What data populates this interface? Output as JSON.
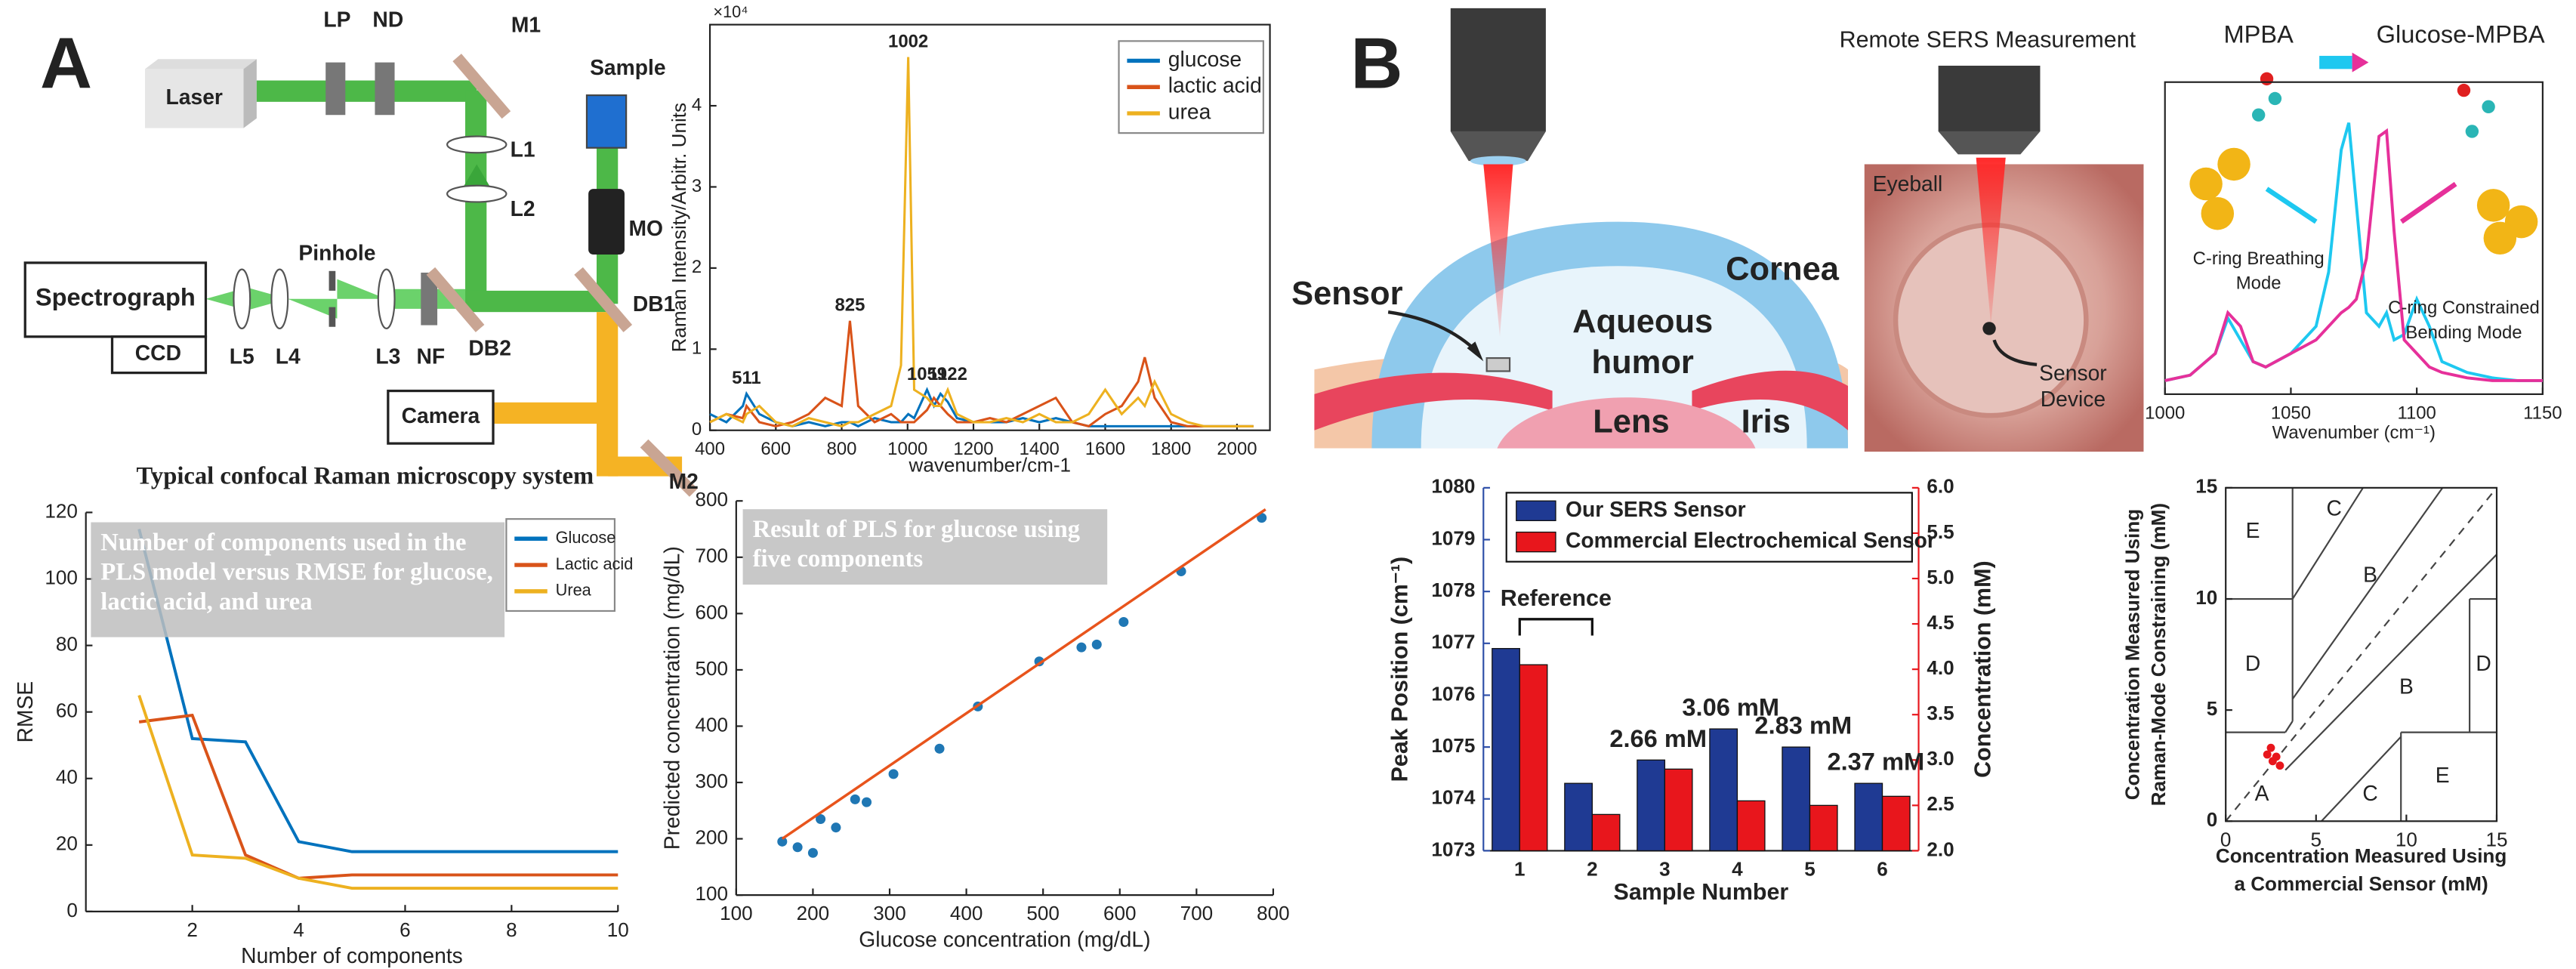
{
  "panel_labels": [
    "A",
    "B"
  ],
  "setup_diagram": {
    "labels": [
      "Laser",
      "LP",
      "ND",
      "M1",
      "Sample",
      "L1",
      "L2",
      "MO",
      "Pinhole",
      "Spectrograph",
      "CCD",
      "L5",
      "L4",
      "L3",
      "NF",
      "DB2",
      "DB1",
      "Camera",
      "M2"
    ],
    "caption": "Typical confocal Raman microscopy system"
  },
  "eye_diagram": {
    "labels": [
      "Sensor",
      "Cornea",
      "Lens",
      "Iris"
    ],
    "aqueous_humor": [
      "Aqueous",
      "humor"
    ]
  },
  "photo": {
    "title": "Remote SERS Measurement",
    "label": "Eyeball",
    "sensor_device": [
      "Sensor",
      "Device"
    ]
  },
  "chart_data": [
    {
      "type": "line",
      "multiplier": "×10⁴",
      "xlabel": "wavenumber/cm-1",
      "ylabel": "Raman Intensity/Arbitr. Units",
      "x": [
        400,
        450,
        500,
        511,
        550,
        600,
        650,
        700,
        750,
        800,
        825,
        850,
        900,
        950,
        980,
        1002,
        1020,
        1059,
        1080,
        1100,
        1122,
        1150,
        1200,
        1250,
        1300,
        1350,
        1400,
        1450,
        1500,
        1550,
        1600,
        1650,
        1700,
        1720,
        1750,
        1800,
        1850,
        1900,
        1950,
        2000,
        2050
      ],
      "series": [
        {
          "name": "glucose",
          "color": "#0072bd",
          "values": [
            0.2,
            0.1,
            0.3,
            0.45,
            0.2,
            0.1,
            0.05,
            0.1,
            0.05,
            0.1,
            0.1,
            0.05,
            0.15,
            0.1,
            0.1,
            0.2,
            0.15,
            0.5,
            0.3,
            0.45,
            0.35,
            0.15,
            0.1,
            0.1,
            0.1,
            0.15,
            0.1,
            0.15,
            0.1,
            0.05,
            0.05,
            0.05,
            0.05,
            0.05,
            0.05,
            0.05,
            0.05,
            0.05,
            0.05,
            0.05,
            0.05
          ]
        },
        {
          "name": "lactic acid",
          "color": "#d95319",
          "values": [
            0.1,
            0.2,
            0.15,
            0.3,
            0.1,
            0.05,
            0.1,
            0.2,
            0.4,
            0.3,
            1.35,
            0.3,
            0.1,
            0.2,
            0.1,
            0.1,
            0.1,
            0.25,
            0.4,
            0.3,
            0.2,
            0.1,
            0.1,
            0.15,
            0.1,
            0.2,
            0.3,
            0.4,
            0.1,
            0.05,
            0.2,
            0.3,
            0.6,
            0.9,
            0.4,
            0.1,
            0.05,
            0.05,
            0.05,
            0.05,
            0.05
          ]
        },
        {
          "name": "urea",
          "color": "#edb120",
          "values": [
            0.1,
            0.2,
            0.1,
            0.2,
            0.3,
            0.1,
            0.05,
            0.15,
            0.1,
            0.05,
            0.1,
            0.1,
            0.2,
            0.3,
            0.8,
            4.6,
            0.5,
            0.4,
            0.3,
            0.3,
            0.5,
            0.2,
            0.1,
            0.1,
            0.15,
            0.1,
            0.2,
            0.1,
            0.1,
            0.2,
            0.5,
            0.2,
            0.4,
            0.3,
            0.6,
            0.2,
            0.1,
            0.05,
            0.05,
            0.05,
            0.05
          ]
        }
      ],
      "peaks": [
        511,
        825,
        1002,
        1059,
        1122
      ],
      "xlim": [
        400,
        2100
      ],
      "xticks": [
        400,
        600,
        800,
        1000,
        1200,
        1400,
        1600,
        1800,
        2000
      ],
      "ylim": [
        0,
        5
      ],
      "yticks": [
        0,
        1,
        2,
        3,
        4
      ],
      "legend": "upper right"
    },
    {
      "type": "line",
      "annotation": "Number of components used in the PLS model versus RMSE for glucose, lactic acid, and urea",
      "xlabel": "Number of components",
      "ylabel": "RMSE",
      "x": [
        1,
        2,
        3,
        4,
        5,
        6,
        7,
        8,
        9,
        10
      ],
      "series": [
        {
          "name": "Glucose",
          "color": "#0072bd",
          "values": [
            115,
            52,
            51,
            21,
            18,
            18,
            18,
            18,
            18,
            18
          ]
        },
        {
          "name": "Lactic acid",
          "color": "#d95319",
          "values": [
            57,
            59,
            17,
            10,
            11,
            11,
            11,
            11,
            11,
            11
          ]
        },
        {
          "name": "Urea",
          "color": "#edb120",
          "values": [
            65,
            17,
            16,
            10,
            7,
            7,
            7,
            7,
            7,
            7
          ]
        }
      ],
      "xlim": [
        0,
        10
      ],
      "xticks": [
        2,
        4,
        6,
        8,
        10
      ],
      "ylim": [
        0,
        120
      ],
      "yticks": [
        0,
        20,
        40,
        60,
        80,
        100,
        120
      ],
      "legend": "upper right"
    },
    {
      "type": "scatter",
      "annotation": "Result of PLS for glucose using five components",
      "xlabel": "Glucose concentration (mg/dL)",
      "ylabel": "Predicted concentration (mg/dL)",
      "series": [
        {
          "color": "#1f77b4",
          "x": [
            160,
            180,
            200,
            210,
            230,
            255,
            270,
            305,
            365,
            415,
            495,
            550,
            570,
            605,
            680,
            785
          ],
          "values": [
            195,
            185,
            175,
            235,
            220,
            270,
            265,
            315,
            360,
            435,
            515,
            540,
            545,
            585,
            675,
            770
          ]
        },
        {
          "style": "line",
          "color": "#e8541c",
          "x": [
            160,
            790
          ],
          "values": [
            200,
            785
          ]
        }
      ],
      "xlim": [
        100,
        800
      ],
      "xticks": [
        100,
        200,
        300,
        400,
        500,
        600,
        700,
        800
      ],
      "ylim": [
        100,
        800
      ],
      "yticks": [
        100,
        200,
        300,
        400,
        500,
        600,
        700,
        800
      ]
    },
    {
      "type": "line",
      "xlabel": "Wavenumber (cm⁻¹)",
      "annotations": [
        [
          "C-ring Breathing",
          "Mode"
        ],
        [
          "C-ring Constrained",
          "Bending Mode"
        ]
      ],
      "x": [
        1000,
        1010,
        1020,
        1025,
        1030,
        1035,
        1040,
        1050,
        1060,
        1065,
        1070,
        1073,
        1076,
        1080,
        1085,
        1088,
        1091,
        1095,
        1100,
        1105,
        1110,
        1120,
        1130,
        1140,
        1150
      ],
      "series": [
        {
          "name": "MPBA",
          "color": "#1ec8f0",
          "values": [
            0.05,
            0.07,
            0.15,
            0.28,
            0.2,
            0.12,
            0.1,
            0.15,
            0.25,
            0.45,
            0.9,
            1.0,
            0.7,
            0.3,
            0.25,
            0.3,
            0.2,
            0.22,
            0.35,
            0.25,
            0.12,
            0.08,
            0.06,
            0.05,
            0.05
          ]
        },
        {
          "name": "Glucose-MPBA",
          "color": "#e6309a",
          "values": [
            0.05,
            0.07,
            0.15,
            0.3,
            0.25,
            0.12,
            0.1,
            0.15,
            0.2,
            0.25,
            0.3,
            0.32,
            0.35,
            0.5,
            0.95,
            0.97,
            0.6,
            0.2,
            0.15,
            0.1,
            0.08,
            0.06,
            0.05,
            0.05,
            0.05
          ]
        }
      ],
      "xlim": [
        1000,
        1150
      ],
      "xticks": [
        1000,
        1050,
        1100,
        1150
      ],
      "ylim": [
        0,
        1.15
      ],
      "legend": "top"
    },
    {
      "type": "bar",
      "xlabel": "Sample Number",
      "ylabel": "Peak Position (cm⁻¹)",
      "y2label": "Concentration (mM)",
      "categories": [
        "1",
        "2",
        "3",
        "4",
        "5",
        "6"
      ],
      "series": [
        {
          "name": "Our SERS Sensor",
          "color": "#1f3a93",
          "values": [
            1076.9,
            1074.3,
            1074.75,
            1075.35,
            1075.0,
            1074.3
          ]
        },
        {
          "name": "Commercial Electrochemical Sensor",
          "color": "#e8161c",
          "axis": "y2",
          "values": [
            4.05,
            2.4,
            2.9,
            2.55,
            2.5,
            2.6
          ]
        }
      ],
      "concentration_labels": [
        null,
        null,
        "2.66 mM",
        "3.06 mM",
        "2.83 mM",
        "2.37 mM"
      ],
      "reference_label": "Reference",
      "ylim": [
        1073,
        1080
      ],
      "yticks": [
        1073,
        1074,
        1075,
        1076,
        1077,
        1078,
        1079,
        1080
      ],
      "y2lim": [
        2,
        6
      ],
      "y2ticks": [
        {
          "value": 2,
          "label": "2.0"
        },
        2.5,
        {
          "value": 3,
          "label": "3.0"
        },
        3.5,
        {
          "value": 4,
          "label": "4.0"
        },
        4.5,
        {
          "value": 5,
          "label": "5.0"
        },
        5.5,
        {
          "value": 6,
          "label": "6.0"
        }
      ],
      "legend": "upper center"
    },
    {
      "type": "scatter",
      "xlabel": [
        "Concentration Measured Using",
        "a Commercial Sensor (mM)"
      ],
      "ylabel": [
        "Concentration Measured Using",
        "Raman-Mode Constraining (mM)"
      ],
      "zones": [
        "E",
        "C",
        "B",
        "D",
        "B",
        "D",
        "A",
        "C",
        "E"
      ],
      "series": [
        {
          "color": "#e8161c",
          "x": [
            2.3,
            2.6,
            2.8,
            3.0,
            2.5
          ],
          "values": [
            3.0,
            2.7,
            2.9,
            2.5,
            3.3
          ]
        }
      ],
      "xlim": [
        0,
        15
      ],
      "xticks": [
        0,
        5,
        10,
        15
      ],
      "ylim": [
        0,
        15
      ],
      "yticks": [
        0,
        5,
        10,
        15
      ]
    }
  ]
}
